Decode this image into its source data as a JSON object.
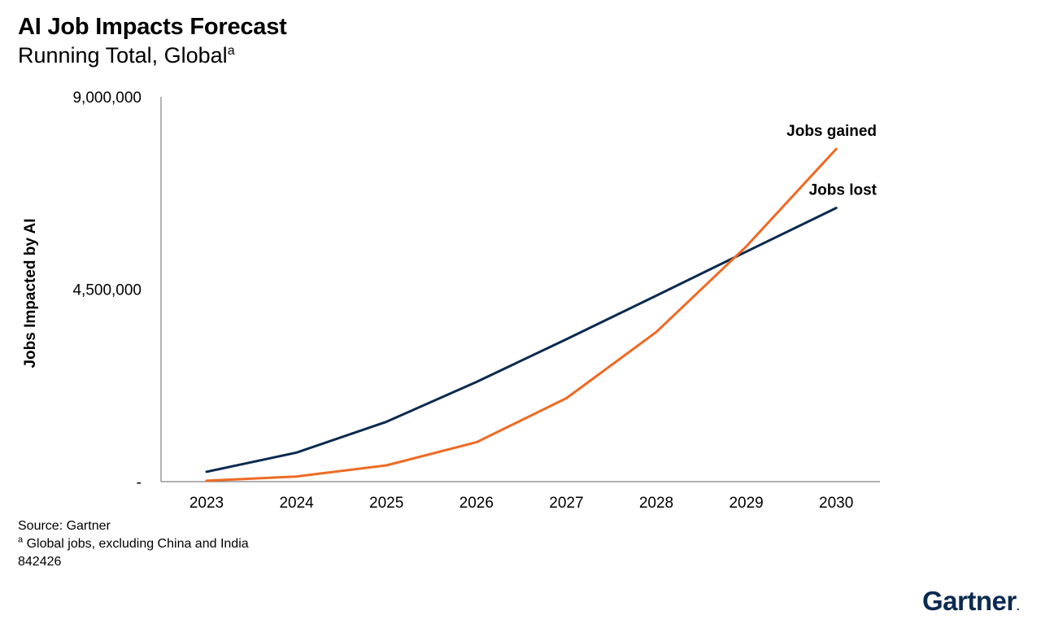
{
  "title": "AI Job Impacts Forecast",
  "subtitle": "Running Total, Global",
  "subtitle_superscript": "a",
  "footer": {
    "source": "Source: Gartner",
    "note_marker": "a",
    "note": " Global jobs, excluding China and India",
    "code": "842426"
  },
  "brand": "Gartner",
  "brand_dot": ".",
  "colors": {
    "jobs_lost": "#0b2a4f",
    "jobs_gained": "#ee6a24",
    "axis": "#808080",
    "brand": "#0b2a4f"
  },
  "chart_data": {
    "type": "line",
    "title": "AI Job Impacts Forecast",
    "subtitle": "Running Total, Global",
    "xlabel": "",
    "ylabel": "Jobs Impacted by AI",
    "x": [
      "2023",
      "2024",
      "2025",
      "2026",
      "2027",
      "2028",
      "2029",
      "2030"
    ],
    "ylim": [
      0,
      9000000
    ],
    "yticks": [
      0,
      4500000,
      9000000
    ],
    "ytick_labels": [
      "-",
      "4,500,000",
      "9,000,000"
    ],
    "grid": false,
    "series": [
      {
        "name": "Jobs lost",
        "color": "#0b2a4f",
        "values": [
          230000,
          680000,
          1400000,
          2330000,
          3330000,
          4350000,
          5380000,
          6400000
        ]
      },
      {
        "name": "Jobs gained",
        "color": "#ee6a24",
        "values": [
          20000,
          120000,
          380000,
          920000,
          1950000,
          3500000,
          5500000,
          7780000
        ]
      }
    ]
  }
}
